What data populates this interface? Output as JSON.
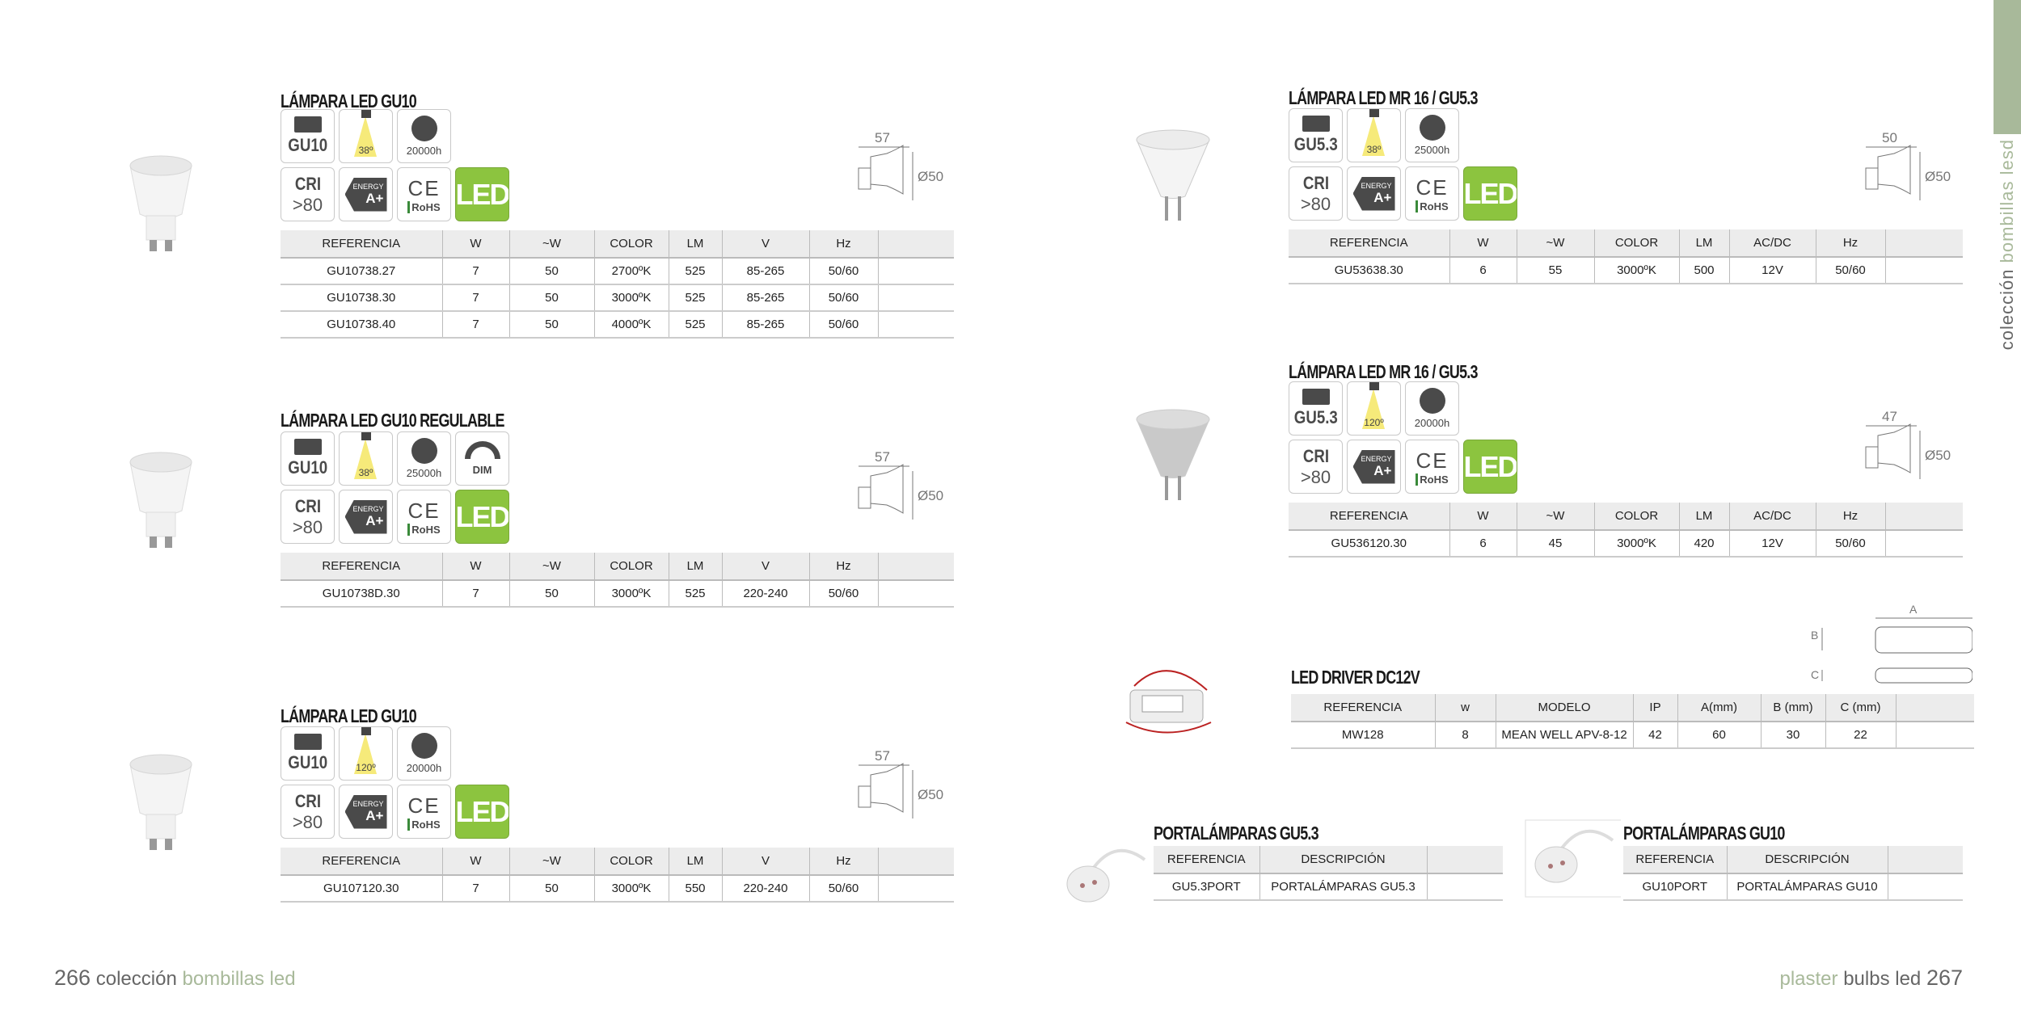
{
  "sections": [
    {
      "id": "s1",
      "title": "LÁMPARA LED GU10",
      "icons": {
        "socket": "GU10",
        "angle": "38º",
        "hours": "20000h",
        "dim": null,
        "cri": "CRI",
        "cri_value": ">80",
        "energy": "ENERGY",
        "energy_class": "A+",
        "rohs": "RoHS",
        "ce": "CE",
        "led": "LED"
      },
      "dimension": {
        "length": "57",
        "diameter": "Ø50"
      },
      "table": {
        "headers": [
          "REFERENCIA",
          "W",
          "~W",
          "COLOR",
          "LM",
          "V",
          "Hz",
          ""
        ],
        "rows": [
          [
            "GU10738.27",
            "7",
            "50",
            "2700ºK",
            "525",
            "85-265",
            "50/60",
            ""
          ],
          [
            "GU10738.30",
            "7",
            "50",
            "3000ºK",
            "525",
            "85-265",
            "50/60",
            ""
          ],
          [
            "GU10738.40",
            "7",
            "50",
            "4000ºK",
            "525",
            "85-265",
            "50/60",
            ""
          ]
        ]
      }
    },
    {
      "id": "s2",
      "title": "LÁMPARA LED GU10 REGULABLE",
      "icons": {
        "socket": "GU10",
        "angle": "38º",
        "hours": "25000h",
        "dim": "DIM",
        "cri": "CRI",
        "cri_value": ">80",
        "energy": "ENERGY",
        "energy_class": "A+",
        "rohs": "RoHS",
        "ce": "CE",
        "led": "LED"
      },
      "dimension": {
        "length": "57",
        "diameter": "Ø50"
      },
      "table": {
        "headers": [
          "REFERENCIA",
          "W",
          "~W",
          "COLOR",
          "LM",
          "V",
          "Hz",
          ""
        ],
        "rows": [
          [
            "GU10738D.30",
            "7",
            "50",
            "3000ºK",
            "525",
            "220-240",
            "50/60",
            ""
          ]
        ]
      }
    },
    {
      "id": "s3",
      "title": "LÁMPARA LED GU10",
      "icons": {
        "socket": "GU10",
        "angle": "120º",
        "hours": "20000h",
        "dim": null,
        "cri": "CRI",
        "cri_value": ">80",
        "energy": "ENERGY",
        "energy_class": "A+",
        "rohs": "RoHS",
        "ce": "CE",
        "led": "LED"
      },
      "dimension": {
        "length": "57",
        "diameter": "Ø50"
      },
      "table": {
        "headers": [
          "REFERENCIA",
          "W",
          "~W",
          "COLOR",
          "LM",
          "V",
          "Hz",
          ""
        ],
        "rows": [
          [
            "GU107120.30",
            "7",
            "50",
            "3000ºK",
            "550",
            "220-240",
            "50/60",
            ""
          ]
        ]
      }
    },
    {
      "id": "r1",
      "title": "LÁMPARA LED MR 16 / GU5.3",
      "icons": {
        "socket": "GU5.3",
        "angle": "38º",
        "hours": "25000h",
        "dim": null,
        "cri": "CRI",
        "cri_value": ">80",
        "energy": "ENERGY",
        "energy_class": "A+",
        "rohs": "RoHS",
        "ce": "CE",
        "led": "LED"
      },
      "dimension": {
        "length": "50",
        "diameter": "Ø50"
      },
      "table": {
        "headers": [
          "REFERENCIA",
          "W",
          "~W",
          "COLOR",
          "LM",
          "AC/DC",
          "Hz",
          ""
        ],
        "rows": [
          [
            "GU53638.30",
            "6",
            "55",
            "3000ºK",
            "500",
            "12V",
            "50/60",
            ""
          ]
        ]
      }
    },
    {
      "id": "r2",
      "title": "LÁMPARA LED MR 16 / GU5.3",
      "icons": {
        "socket": "GU5.3",
        "angle": "120º",
        "hours": "20000h",
        "dim": null,
        "cri": "CRI",
        "cri_value": ">80",
        "energy": "ENERGY",
        "energy_class": "A+",
        "rohs": "RoHS",
        "ce": "CE",
        "led": "LED"
      },
      "dimension": {
        "length": "47",
        "diameter": "Ø50"
      },
      "table": {
        "headers": [
          "REFERENCIA",
          "W",
          "~W",
          "COLOR",
          "LM",
          "AC/DC",
          "Hz",
          ""
        ],
        "rows": [
          [
            "GU536120.30",
            "6",
            "45",
            "3000ºK",
            "420",
            "12V",
            "50/60",
            ""
          ]
        ]
      }
    },
    {
      "id": "drv",
      "title": "LED DRIVER DC12V",
      "icons": null,
      "dimension": {
        "a": "A",
        "b": "B",
        "c": "C"
      },
      "table": {
        "headers": [
          "REFERENCIA",
          "w",
          "MODELO",
          "IP",
          "A(mm)",
          "B (mm)",
          "C (mm)",
          ""
        ],
        "rows": [
          [
            "MW128",
            "8",
            "MEAN WELL APV-8-12",
            "42",
            "60",
            "30",
            "22",
            ""
          ]
        ]
      }
    },
    {
      "id": "p1",
      "title": "PORTALÁMPARAS GU5.3",
      "icons": null,
      "dimension": null,
      "table": {
        "headers": [
          "REFERENCIA",
          "DESCRIPCIÓN",
          ""
        ],
        "rows": [
          [
            "GU5.3PORT",
            "PORTALÁMPARAS GU5.3",
            ""
          ]
        ]
      }
    },
    {
      "id": "p2",
      "title": "PORTALÁMPARAS GU10",
      "icons": null,
      "dimension": null,
      "table": {
        "headers": [
          "REFERENCIA",
          "DESCRIPCIÓN",
          ""
        ],
        "rows": [
          [
            "GU10PORT",
            "PORTALÁMPARAS GU10",
            ""
          ]
        ]
      }
    }
  ],
  "side_label": {
    "dark": "colección",
    "light": "bombillas lesd"
  },
  "footer": {
    "left_page": "266",
    "left_dark": "colección",
    "left_light": "bombillas led",
    "right_light": "plaster",
    "right_dark": "bulbs led",
    "right_page": "267"
  },
  "colors": {
    "accent_green": "#a8b99a",
    "led_green": "#8cc43f",
    "header_gray": "#ececec"
  }
}
